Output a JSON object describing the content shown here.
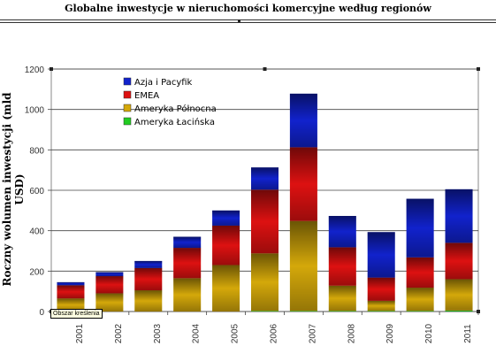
{
  "chart_data": {
    "type": "bar",
    "stacked": true,
    "title": "Globalne inwestycje w nieruchomości komercyjne według regionów",
    "ylabel": "Roczny wolumen inwestycji (mld USD)",
    "xlabel": "",
    "ylim": [
      0,
      1200
    ],
    "yticks": [
      0,
      200,
      400,
      600,
      800,
      1000,
      1200
    ],
    "grid": true,
    "legend_position": "top-left",
    "categories": [
      "2001",
      "2002",
      "2003",
      "2004",
      "2005",
      "2006",
      "2007",
      "2008",
      "2009",
      "2010",
      "2011"
    ],
    "series": [
      {
        "name": "Ameryka Łacińska",
        "color": "#22cc22",
        "values": [
          0,
          0,
          0,
          0,
          0,
          3,
          3,
          3,
          3,
          3,
          5
        ]
      },
      {
        "name": "Ameryka Północna",
        "color": "#d4a80a",
        "values": [
          65,
          90,
          105,
          165,
          230,
          285,
          445,
          125,
          50,
          115,
          155
        ]
      },
      {
        "name": "EMEA",
        "color": "#dd1111",
        "values": [
          65,
          85,
          110,
          150,
          195,
          315,
          365,
          190,
          115,
          150,
          180
        ]
      },
      {
        "name": "Azja i Pacyfik",
        "color": "#1122cc",
        "values": [
          15,
          20,
          35,
          55,
          75,
          110,
          265,
          155,
          225,
          290,
          265
        ]
      }
    ],
    "legend_order": [
      "Azja i Pacyfik",
      "EMEA",
      "Ameryka Północna",
      "Ameryka Łacińska"
    ]
  },
  "tooltip": "Obszar kreślenia"
}
